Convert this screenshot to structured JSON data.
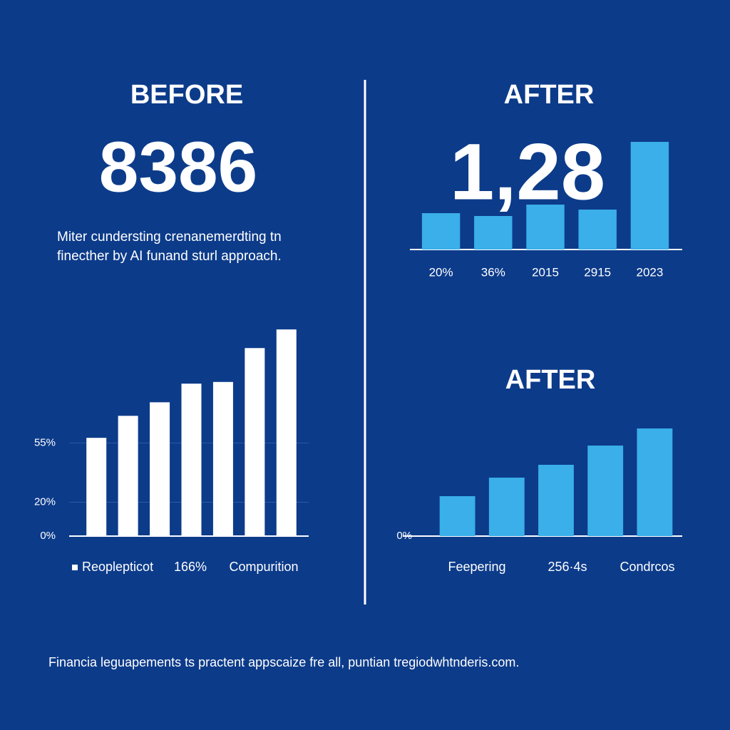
{
  "chart_data": [
    {
      "type": "bar",
      "title": "BEFORE",
      "headline": "8386",
      "description": [
        "Miter cundersting crenanemerdting tn",
        "finecther by AI funand sturl approach."
      ],
      "categories": [
        null,
        null,
        null,
        null,
        null,
        null,
        null
      ],
      "values": [
        58,
        71,
        79,
        90,
        91,
        111,
        122
      ],
      "color": "#ffffff",
      "ylim": [
        0,
        125
      ],
      "yticks": [
        {
          "value": 0,
          "label": "0%"
        },
        {
          "value": 20,
          "label": "20%"
        },
        {
          "value": 55,
          "label": "55%"
        }
      ],
      "grid": true,
      "labels": [
        "Reoplepticot",
        "166%",
        "Compurition"
      ]
    },
    {
      "type": "bar",
      "title": "AFTER",
      "headline": "1,28",
      "categories": [
        "20%",
        "36%",
        "2015",
        "2915",
        "2023"
      ],
      "values": [
        51,
        47,
        63,
        56,
        151
      ],
      "color": "#3aafe9",
      "ylim": [
        0,
        160
      ]
    },
    {
      "type": "bar",
      "title": "AFTER",
      "categories": [
        null,
        null,
        null,
        null,
        null
      ],
      "values": [
        56,
        82,
        100,
        127,
        151
      ],
      "color": "#3aafe9",
      "ylim": [
        0,
        160
      ],
      "yticks": [
        {
          "value": 0,
          "label": "0%"
        }
      ],
      "labels": [
        "Feepering",
        "256·4s",
        "Condrcos"
      ]
    }
  ],
  "footer": "Financia leguapements ts practent appscaize fre all, puntian tregiodwhtnderis.com."
}
